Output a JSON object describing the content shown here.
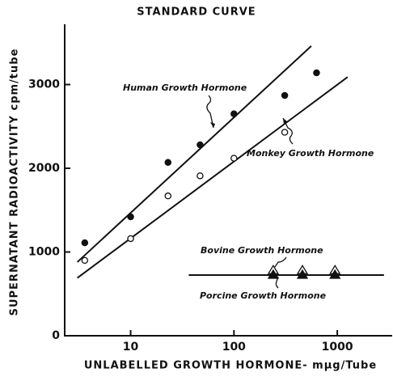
{
  "chart_data": {
    "type": "scatter",
    "title": "STANDARD CURVE",
    "xlabel": "UNLABELLED GROWTH HORMONE- mμg/Tube",
    "ylabel": "SUPERNATANT RADIOACTIVITY cpm/tube",
    "xscale": "log",
    "xlim": [
      2.3,
      3400
    ],
    "ylim": [
      0,
      3720
    ],
    "xticks": [
      10,
      100,
      1000
    ],
    "yticks": [
      0,
      1000,
      2000,
      3000
    ],
    "series": [
      {
        "name": "Human Growth Hormone",
        "marker": "circle",
        "filled": true,
        "color": "#111",
        "x": [
          3.6,
          10,
          23,
          47,
          100,
          310,
          630
        ],
        "values": [
          1110,
          1420,
          2070,
          2280,
          2650,
          2870,
          3140
        ],
        "fit": {
          "x": [
            3.05,
            560
          ],
          "values": [
            880,
            3460
          ]
        }
      },
      {
        "name": "Monkey Growth Hormone",
        "marker": "circle",
        "filled": false,
        "color": "#111",
        "x": [
          3.6,
          10,
          23,
          47,
          100,
          310
        ],
        "values": [
          900,
          1160,
          1670,
          1910,
          2120,
          2430
        ],
        "fit": {
          "x": [
            3.05,
            1260
          ],
          "values": [
            690,
            3090
          ]
        }
      },
      {
        "name": "Bovine Growth Hormone",
        "marker": "triangle",
        "filled": false,
        "color": "#111",
        "x": [
          240,
          460,
          950
        ],
        "values": [
          780,
          780,
          780
        ],
        "fit": {
          "x": [
            36.5,
            2830
          ],
          "values": [
            725,
            725
          ]
        }
      },
      {
        "name": "Porcine Growth Hormone",
        "marker": "triangle",
        "filled": true,
        "color": "#111",
        "x": [
          240,
          460,
          950
        ],
        "values": [
          725,
          725,
          725
        ]
      }
    ]
  }
}
